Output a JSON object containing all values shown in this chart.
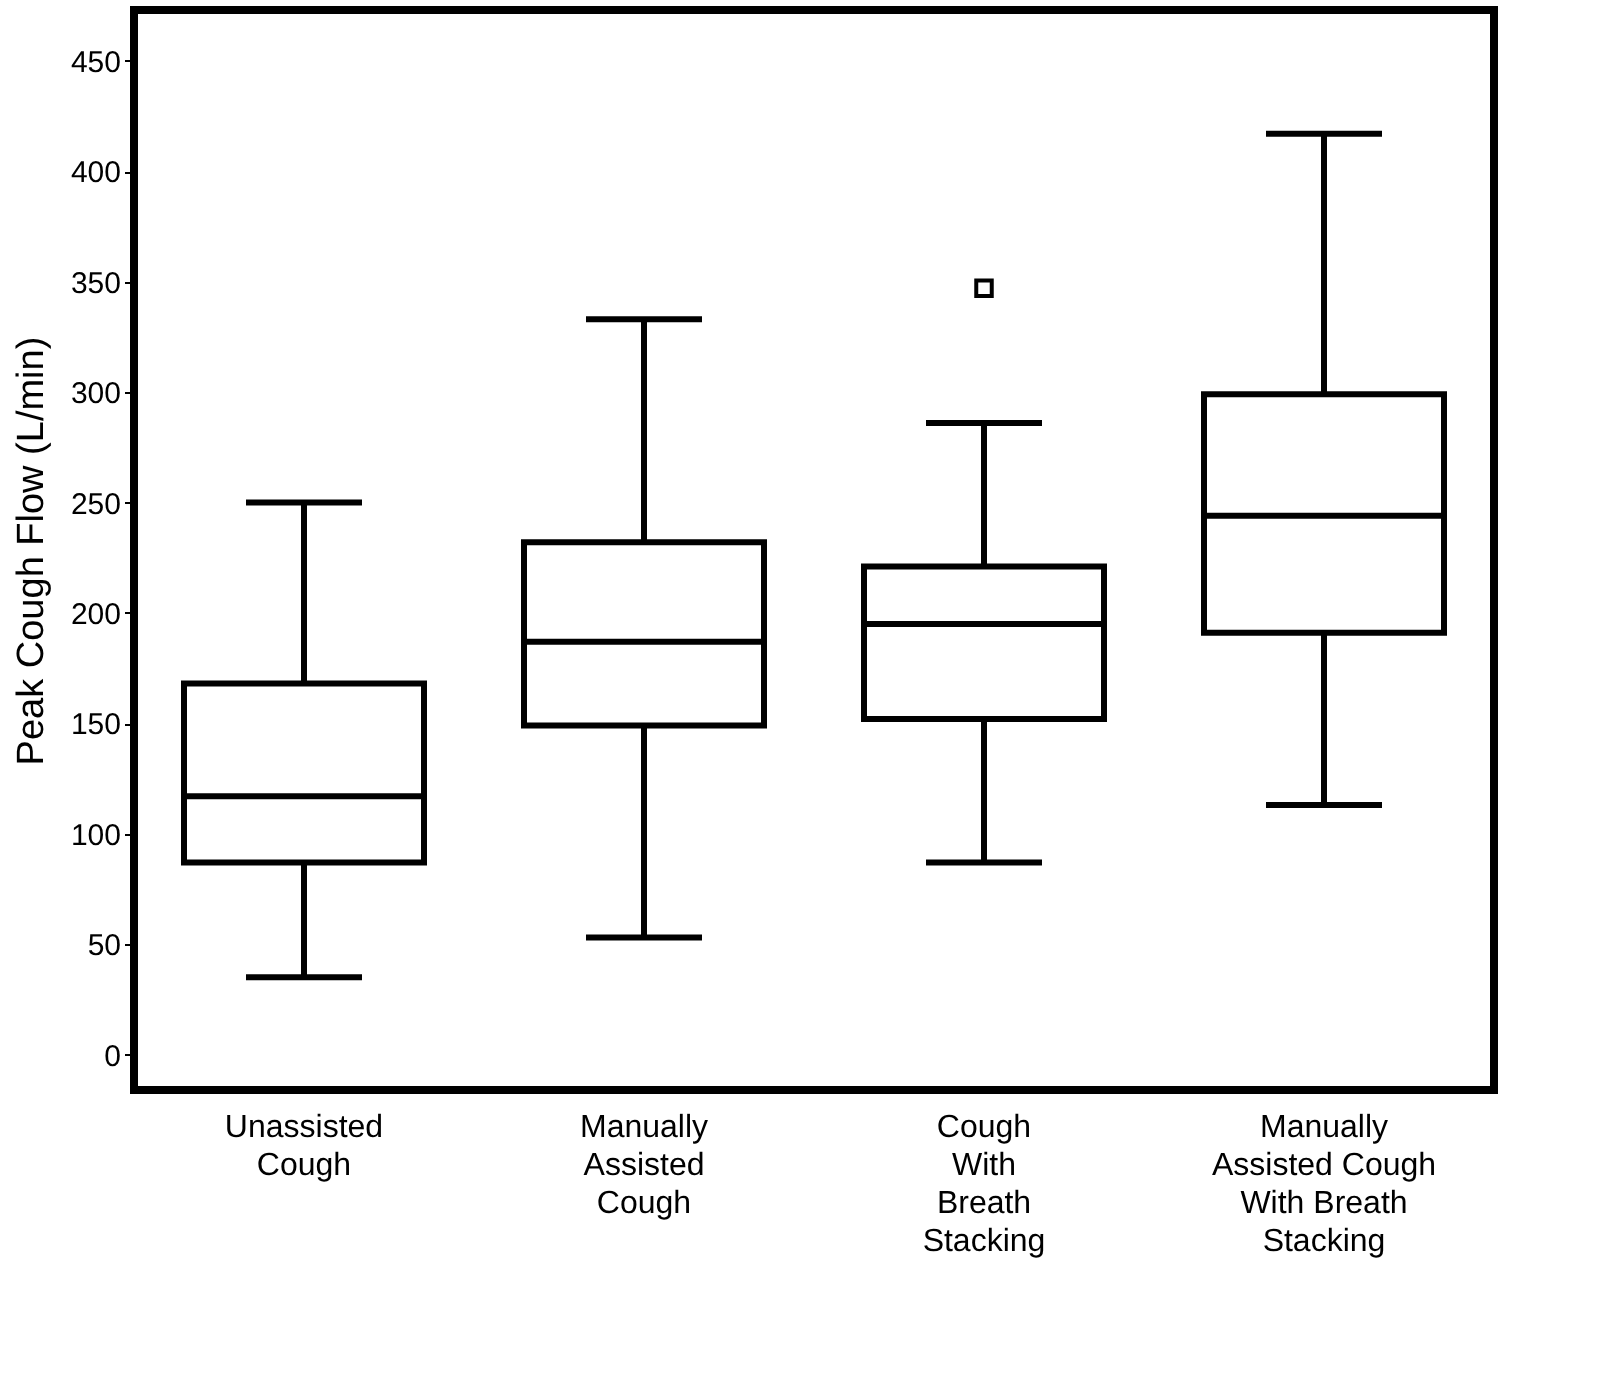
{
  "chart_data": {
    "type": "box",
    "ylabel": "Peak Cough Flow (L/min)",
    "categories": [
      "Unassisted\nCough",
      "Manually\nAssisted\nCough",
      "Cough\nWith\nBreath\nStacking",
      "Manually\nAssisted Cough\nWith Breath\nStacking"
    ],
    "boxes": [
      {
        "low": 35,
        "q1": 87,
        "median": 117,
        "q3": 168,
        "high": 250
      },
      {
        "low": 53,
        "q1": 149,
        "median": 187,
        "q3": 232,
        "high": 333
      },
      {
        "low": 87,
        "q1": 152,
        "median": 195,
        "q3": 221,
        "high": 286,
        "outliers": [
          347
        ]
      },
      {
        "low": 113,
        "q1": 191,
        "median": 244,
        "q3": 299,
        "high": 417
      }
    ],
    "ylim": [
      -16,
      473
    ],
    "yticks": [
      0,
      50,
      100,
      150,
      200,
      250,
      300,
      350,
      400,
      450
    ],
    "grid": false
  }
}
